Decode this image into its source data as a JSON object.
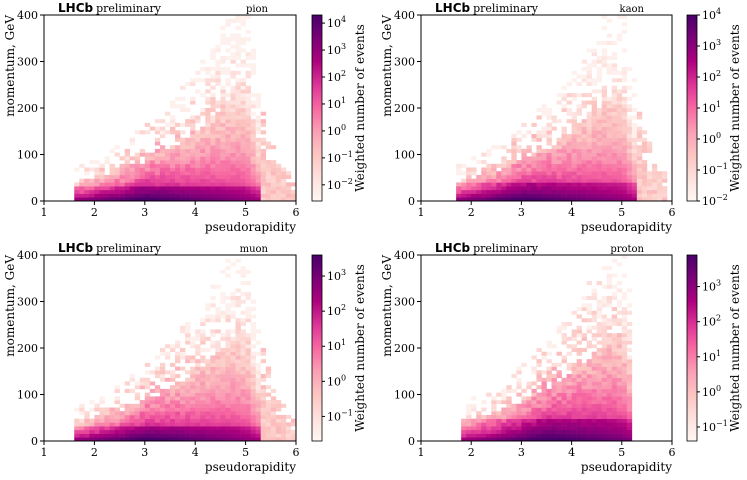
{
  "experiment_label": "LHCb",
  "preliminary_label": "preliminary",
  "colormap": [
    "#fff7f3",
    "#fde0dd",
    "#fcc5c0",
    "#fa9fb5",
    "#f768a1",
    "#dd3497",
    "#ae017e",
    "#7a0177",
    "#49006a"
  ],
  "chart_data": [
    {
      "type": "heatmap",
      "species": "pion",
      "xlabel": "pseudorapidity",
      "ylabel": "momentum, GeV",
      "xlim": [
        1,
        6
      ],
      "ylim": [
        0,
        400
      ],
      "xticks": [
        "1",
        "2",
        "3",
        "4",
        "5",
        "6"
      ],
      "yticks": [
        "0",
        "100",
        "200",
        "300",
        "400"
      ],
      "eta_range": [
        1.6,
        6.0
      ],
      "eta_edge_high": 5.0,
      "peak": [
        3.0,
        15
      ],
      "colorbar": {
        "label": "Weighted number of events",
        "log": true,
        "range_exp": [
          -2.6,
          4.3
        ],
        "ticks": [
          {
            "base": "10",
            "exp": "4"
          },
          {
            "base": "10",
            "exp": "3"
          },
          {
            "base": "10",
            "exp": "2"
          },
          {
            "base": "10",
            "exp": "1"
          },
          {
            "base": "10",
            "exp": "0"
          },
          {
            "base": "10",
            "exp": "−1"
          },
          {
            "base": "10",
            "exp": "−2"
          }
        ]
      },
      "grid": false
    },
    {
      "type": "heatmap",
      "species": "kaon",
      "xlabel": "pseudorapidity",
      "ylabel": "momentum, GeV",
      "xlim": [
        1,
        6
      ],
      "ylim": [
        0,
        400
      ],
      "xticks": [
        "1",
        "2",
        "3",
        "4",
        "5",
        "6"
      ],
      "yticks": [
        "0",
        "100",
        "200",
        "300",
        "400"
      ],
      "eta_range": [
        1.7,
        5.9
      ],
      "eta_edge_high": 5.0,
      "peak": [
        3.0,
        20
      ],
      "colorbar": {
        "label": "Weighted number of events",
        "log": true,
        "range_exp": [
          -2.0,
          4.0
        ],
        "ticks": [
          {
            "base": "10",
            "exp": "4"
          },
          {
            "base": "10",
            "exp": "3"
          },
          {
            "base": "10",
            "exp": "2"
          },
          {
            "base": "10",
            "exp": "1"
          },
          {
            "base": "10",
            "exp": "0"
          },
          {
            "base": "10",
            "exp": "−1"
          },
          {
            "base": "10",
            "exp": "−2"
          }
        ]
      },
      "grid": false
    },
    {
      "type": "heatmap",
      "species": "muon",
      "xlabel": "pseudorapidity",
      "ylabel": "momentum, GeV",
      "xlim": [
        1,
        6
      ],
      "ylim": [
        0,
        400
      ],
      "xticks": [
        "1",
        "2",
        "3",
        "4",
        "5",
        "6"
      ],
      "yticks": [
        "0",
        "100",
        "200",
        "300",
        "400"
      ],
      "eta_range": [
        1.6,
        6.0
      ],
      "eta_edge_high": 5.0,
      "peak": [
        3.0,
        15
      ],
      "colorbar": {
        "label": "Weighted number of events",
        "log": true,
        "range_exp": [
          -1.7,
          3.6
        ],
        "ticks": [
          {
            "base": "10",
            "exp": "3"
          },
          {
            "base": "10",
            "exp": "2"
          },
          {
            "base": "10",
            "exp": "1"
          },
          {
            "base": "10",
            "exp": "0"
          },
          {
            "base": "10",
            "exp": "−1"
          }
        ]
      },
      "grid": false
    },
    {
      "type": "heatmap",
      "species": "proton",
      "xlabel": "pseudorapidity",
      "ylabel": "momentum, GeV",
      "xlim": [
        1,
        6
      ],
      "ylim": [
        0,
        400
      ],
      "xticks": [
        "1",
        "2",
        "3",
        "4",
        "5",
        "6"
      ],
      "yticks": [
        "0",
        "100",
        "200",
        "300",
        "400"
      ],
      "eta_range": [
        1.8,
        5.2
      ],
      "eta_edge_high": 5.0,
      "peak": [
        3.5,
        25
      ],
      "colorbar": {
        "label": "Weighted number of events",
        "log": true,
        "range_exp": [
          -1.4,
          3.9
        ],
        "ticks": [
          {
            "base": "10",
            "exp": "3"
          },
          {
            "base": "10",
            "exp": "2"
          },
          {
            "base": "10",
            "exp": "1"
          },
          {
            "base": "10",
            "exp": "0"
          },
          {
            "base": "10",
            "exp": "−1"
          }
        ]
      },
      "grid": false
    }
  ]
}
